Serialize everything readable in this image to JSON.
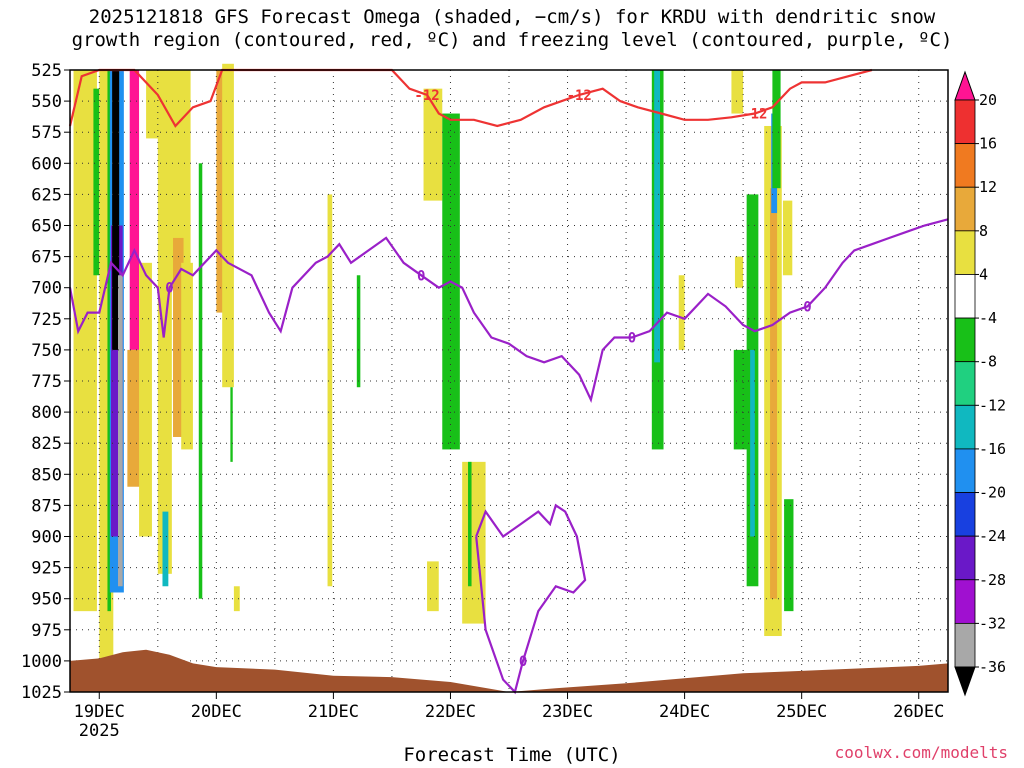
{
  "title": "2025121818 GFS Forecast Omega (shaded, −cm/s) for KRDU with dendritic snow\ngrowth region (contoured, red, ºC) and freezing level (contoured, purple, ºC)",
  "credit": "coolwx.com/modelts",
  "chart_data": {
    "type": "heatmap",
    "title": "2025121818 GFS Forecast Omega (shaded, −cm/s) for KRDU with dendritic snow growth region (contoured, red, ºC) and freezing level (contoured, purple, ºC)",
    "xlabel": "Forecast Time (UTC)",
    "ylabel": "",
    "x_ticks": [
      "19DEC",
      "20DEC",
      "21DEC",
      "22DEC",
      "23DEC",
      "24DEC",
      "25DEC",
      "26DEC"
    ],
    "x_year": "2025",
    "x_range_days": [
      18.75,
      26.25
    ],
    "y_ticks": [
      525,
      550,
      575,
      600,
      625,
      650,
      675,
      700,
      725,
      750,
      775,
      800,
      825,
      850,
      875,
      900,
      925,
      950,
      975,
      1000,
      1025
    ],
    "y_range_hPa": [
      525,
      1025
    ],
    "y_inverted": true,
    "grid": true,
    "colorbar": {
      "levels": [
        20,
        16,
        12,
        8,
        4,
        -4,
        -8,
        -12,
        -16,
        -20,
        -24,
        -28,
        -32,
        -36
      ],
      "colors": [
        "#ff1493",
        "#ee3030",
        "#f07a20",
        "#e8a93a",
        "#e8e040",
        "#ffffff",
        "#18c018",
        "#20d080",
        "#10b8c0",
        "#2090f0",
        "#1840e0",
        "#6a18c8",
        "#a010d0",
        "#a8a8a8",
        "#000000"
      ]
    },
    "shaded_regions": [
      {
        "cat": "yellow",
        "x0": 18.78,
        "x1": 18.98,
        "p0": 525,
        "p1": 960
      },
      {
        "cat": "green",
        "x0": 18.95,
        "x1": 19.0,
        "p0": 540,
        "p1": 690
      },
      {
        "cat": "yellow",
        "x0": 19.0,
        "x1": 19.12,
        "p0": 525,
        "p1": 1000
      },
      {
        "cat": "green",
        "x0": 19.07,
        "x1": 19.1,
        "p0": 525,
        "p1": 960
      },
      {
        "cat": "blue",
        "x0": 19.09,
        "x1": 19.21,
        "p0": 525,
        "p1": 945
      },
      {
        "cat": "purple",
        "x0": 19.1,
        "x1": 19.2,
        "p0": 650,
        "p1": 900
      },
      {
        "cat": "black",
        "x0": 19.11,
        "x1": 19.17,
        "p0": 525,
        "p1": 750
      },
      {
        "cat": "gray",
        "x0": 19.16,
        "x1": 19.2,
        "p0": 690,
        "p1": 940
      },
      {
        "cat": "magenta",
        "x0": 19.26,
        "x1": 19.34,
        "p0": 525,
        "p1": 750
      },
      {
        "cat": "orange",
        "x0": 19.24,
        "x1": 19.36,
        "p0": 750,
        "p1": 860
      },
      {
        "cat": "yellow",
        "x0": 19.34,
        "x1": 19.45,
        "p0": 680,
        "p1": 900
      },
      {
        "cat": "yellow",
        "x0": 19.4,
        "x1": 19.6,
        "p0": 525,
        "p1": 580
      },
      {
        "cat": "yellow",
        "x0": 19.5,
        "x1": 19.62,
        "p0": 560,
        "p1": 930
      },
      {
        "cat": "cyan",
        "x0": 19.54,
        "x1": 19.59,
        "p0": 880,
        "p1": 940
      },
      {
        "cat": "green",
        "x0": 19.85,
        "x1": 19.88,
        "p0": 600,
        "p1": 950
      },
      {
        "cat": "yellow",
        "x0": 19.58,
        "x1": 19.78,
        "p0": 525,
        "p1": 700
      },
      {
        "cat": "orange",
        "x0": 19.63,
        "x1": 19.72,
        "p0": 660,
        "p1": 820
      },
      {
        "cat": "yellow",
        "x0": 19.7,
        "x1": 19.8,
        "p0": 680,
        "p1": 830
      },
      {
        "cat": "orange",
        "x0": 20.0,
        "x1": 20.12,
        "p0": 525,
        "p1": 720
      },
      {
        "cat": "yellow",
        "x0": 20.05,
        "x1": 20.15,
        "p0": 520,
        "p1": 780
      },
      {
        "cat": "yellow",
        "x0": 20.15,
        "x1": 20.2,
        "p0": 940,
        "p1": 960
      },
      {
        "cat": "green",
        "x0": 20.12,
        "x1": 20.14,
        "p0": 780,
        "p1": 840
      },
      {
        "cat": "yellow",
        "x0": 20.95,
        "x1": 20.99,
        "p0": 625,
        "p1": 940
      },
      {
        "cat": "green",
        "x0": 21.2,
        "x1": 21.23,
        "p0": 690,
        "p1": 780
      },
      {
        "cat": "yellow",
        "x0": 21.77,
        "x1": 21.93,
        "p0": 540,
        "p1": 630
      },
      {
        "cat": "green",
        "x0": 21.93,
        "x1": 22.08,
        "p0": 560,
        "p1": 830
      },
      {
        "cat": "yellow",
        "x0": 22.1,
        "x1": 22.3,
        "p0": 840,
        "p1": 970
      },
      {
        "cat": "green",
        "x0": 22.15,
        "x1": 22.18,
        "p0": 840,
        "p1": 940
      },
      {
        "cat": "yellow",
        "x0": 21.8,
        "x1": 21.9,
        "p0": 920,
        "p1": 960
      },
      {
        "cat": "green",
        "x0": 23.72,
        "x1": 23.82,
        "p0": 525,
        "p1": 830
      },
      {
        "cat": "cyan",
        "x0": 23.74,
        "x1": 23.79,
        "p0": 525,
        "p1": 760
      },
      {
        "cat": "yellow",
        "x0": 23.95,
        "x1": 24.0,
        "p0": 690,
        "p1": 750
      },
      {
        "cat": "yellow",
        "x0": 24.4,
        "x1": 24.5,
        "p0": 525,
        "p1": 560
      },
      {
        "cat": "yellow",
        "x0": 24.43,
        "x1": 24.5,
        "p0": 675,
        "p1": 700
      },
      {
        "cat": "green",
        "x0": 24.42,
        "x1": 24.55,
        "p0": 750,
        "p1": 830
      },
      {
        "cat": "green",
        "x0": 24.53,
        "x1": 24.63,
        "p0": 625,
        "p1": 940
      },
      {
        "cat": "cyan",
        "x0": 24.56,
        "x1": 24.6,
        "p0": 750,
        "p1": 900
      },
      {
        "cat": "yellow",
        "x0": 24.68,
        "x1": 24.83,
        "p0": 570,
        "p1": 980
      },
      {
        "cat": "orange",
        "x0": 24.73,
        "x1": 24.79,
        "p0": 620,
        "p1": 950
      },
      {
        "cat": "blue",
        "x0": 24.74,
        "x1": 24.79,
        "p0": 560,
        "p1": 640
      },
      {
        "cat": "green",
        "x0": 24.75,
        "x1": 24.82,
        "p0": 525,
        "p1": 620
      },
      {
        "cat": "yellow",
        "x0": 24.84,
        "x1": 24.92,
        "p0": 630,
        "p1": 690
      },
      {
        "cat": "green",
        "x0": 24.85,
        "x1": 24.93,
        "p0": 870,
        "p1": 960
      }
    ],
    "contours": {
      "dgz_minus12": {
        "color": "#ee3333",
        "label": "-12",
        "points": [
          [
            18.75,
            570
          ],
          [
            18.85,
            530
          ],
          [
            19.0,
            525
          ],
          [
            19.3,
            525
          ],
          [
            19.5,
            545
          ],
          [
            19.65,
            570
          ],
          [
            19.8,
            555
          ],
          [
            19.95,
            550
          ],
          [
            20.05,
            525
          ],
          [
            20.3,
            525
          ],
          [
            21.5,
            525
          ],
          [
            21.65,
            540
          ],
          [
            21.8,
            545
          ],
          [
            21.9,
            560
          ],
          [
            22.0,
            565
          ],
          [
            22.2,
            565
          ],
          [
            22.4,
            570
          ],
          [
            22.6,
            565
          ],
          [
            22.8,
            555
          ],
          [
            22.95,
            550
          ],
          [
            23.1,
            545
          ],
          [
            23.3,
            540
          ],
          [
            23.45,
            550
          ],
          [
            23.6,
            555
          ],
          [
            23.8,
            560
          ],
          [
            24.0,
            565
          ],
          [
            24.2,
            565
          ],
          [
            24.4,
            563
          ],
          [
            24.6,
            560
          ],
          [
            24.75,
            555
          ],
          [
            24.9,
            540
          ],
          [
            25.0,
            535
          ],
          [
            25.2,
            535
          ],
          [
            25.4,
            530
          ],
          [
            25.6,
            525
          ]
        ]
      },
      "freezing_0": {
        "color": "#9a20c8",
        "label": "0",
        "points": [
          [
            18.75,
            700
          ],
          [
            18.82,
            735
          ],
          [
            18.9,
            720
          ],
          [
            19.0,
            720
          ],
          [
            19.1,
            680
          ],
          [
            19.2,
            690
          ],
          [
            19.3,
            670
          ],
          [
            19.4,
            690
          ],
          [
            19.5,
            700
          ],
          [
            19.55,
            740
          ],
          [
            19.6,
            700
          ],
          [
            19.7,
            685
          ],
          [
            19.8,
            690
          ],
          [
            19.9,
            680
          ],
          [
            20.0,
            670
          ],
          [
            20.1,
            680
          ],
          [
            20.3,
            690
          ],
          [
            20.45,
            720
          ],
          [
            20.55,
            735
          ],
          [
            20.65,
            700
          ],
          [
            20.75,
            690
          ],
          [
            20.85,
            680
          ],
          [
            20.95,
            675
          ],
          [
            21.05,
            665
          ],
          [
            21.15,
            680
          ],
          [
            21.3,
            670
          ],
          [
            21.45,
            660
          ],
          [
            21.6,
            680
          ],
          [
            21.75,
            690
          ],
          [
            21.9,
            700
          ],
          [
            22.0,
            695
          ],
          [
            22.1,
            700
          ],
          [
            22.2,
            720
          ],
          [
            22.35,
            740
          ],
          [
            22.5,
            745
          ],
          [
            22.65,
            755
          ],
          [
            22.8,
            760
          ],
          [
            22.95,
            755
          ],
          [
            23.1,
            770
          ],
          [
            23.2,
            790
          ],
          [
            23.3,
            750
          ],
          [
            23.4,
            740
          ],
          [
            23.55,
            740
          ],
          [
            23.7,
            735
          ],
          [
            23.85,
            720
          ],
          [
            24.0,
            725
          ],
          [
            24.2,
            705
          ],
          [
            24.35,
            715
          ],
          [
            24.5,
            730
          ],
          [
            24.6,
            735
          ],
          [
            24.75,
            730
          ],
          [
            24.9,
            720
          ],
          [
            25.05,
            715
          ],
          [
            25.2,
            700
          ],
          [
            25.35,
            680
          ],
          [
            25.45,
            670
          ],
          [
            25.6,
            665
          ],
          [
            25.75,
            660
          ],
          [
            25.9,
            655
          ],
          [
            26.05,
            650
          ],
          [
            26.25,
            645
          ]
        ]
      },
      "freezing_0_low": {
        "color": "#9a20c8",
        "label": "0",
        "points": [
          [
            22.22,
            900
          ],
          [
            22.3,
            975
          ],
          [
            22.45,
            1015
          ],
          [
            22.55,
            1025
          ],
          [
            22.62,
            1000
          ],
          [
            22.75,
            960
          ],
          [
            22.9,
            940
          ],
          [
            23.05,
            945
          ],
          [
            23.15,
            935
          ],
          [
            23.08,
            900
          ],
          [
            22.98,
            880
          ],
          [
            22.9,
            875
          ],
          [
            22.85,
            890
          ],
          [
            22.75,
            880
          ],
          [
            22.6,
            890
          ],
          [
            22.45,
            900
          ],
          [
            22.3,
            880
          ],
          [
            22.22,
            900
          ]
        ]
      }
    },
    "terrain_surface_hPa": [
      [
        18.75,
        1000
      ],
      [
        19.0,
        998
      ],
      [
        19.2,
        993
      ],
      [
        19.4,
        991
      ],
      [
        19.6,
        995
      ],
      [
        19.8,
        1002
      ],
      [
        20.0,
        1005
      ],
      [
        20.5,
        1007
      ],
      [
        21.0,
        1012
      ],
      [
        21.5,
        1013
      ],
      [
        22.0,
        1017
      ],
      [
        22.5,
        1025
      ],
      [
        22.9,
        1022
      ],
      [
        23.5,
        1018
      ],
      [
        24.0,
        1014
      ],
      [
        24.5,
        1010
      ],
      [
        25.0,
        1008
      ],
      [
        25.5,
        1006
      ],
      [
        26.0,
        1004
      ],
      [
        26.25,
        1002
      ]
    ]
  }
}
